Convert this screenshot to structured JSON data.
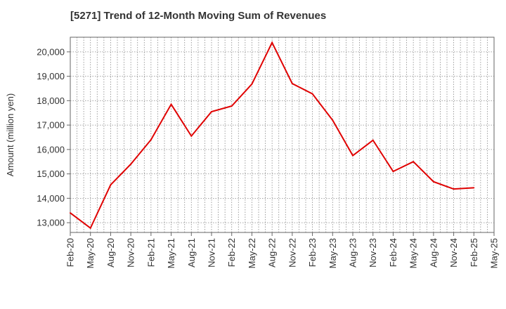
{
  "chart_data": {
    "type": "line",
    "title": "[5271]  Trend of 12-Month Moving Sum of Revenues",
    "xlabel": "",
    "ylabel": "Amount (million yen)",
    "grid": true,
    "legend": "none",
    "line_color": "#e00000",
    "x_ticks": [
      "Feb-20",
      "May-20",
      "Aug-20",
      "Nov-20",
      "Feb-21",
      "May-21",
      "Aug-21",
      "Nov-21",
      "Feb-22",
      "May-22",
      "Aug-22",
      "Nov-22",
      "Feb-23",
      "May-23",
      "Aug-23",
      "Nov-23",
      "Feb-24",
      "May-24",
      "Aug-24",
      "Nov-24",
      "Feb-25",
      "May-25"
    ],
    "y_ticks": [
      "13,000",
      "14,000",
      "15,000",
      "16,000",
      "17,000",
      "18,000",
      "19,000",
      "20,000"
    ],
    "ylim": [
      12600,
      20600
    ],
    "series": [
      {
        "values": [
          13400,
          12780,
          14550,
          15400,
          16400,
          17850,
          16550,
          17550,
          17780,
          18680,
          20380,
          18700,
          18280,
          17200,
          15750,
          16380,
          15100,
          15500,
          14680,
          14380,
          14430
        ]
      }
    ]
  }
}
